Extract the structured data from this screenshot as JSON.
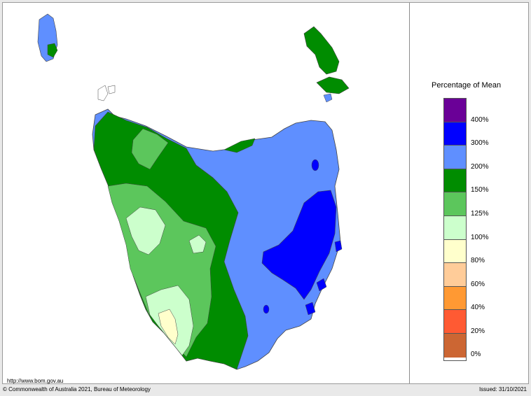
{
  "map": {
    "url": "http://www.bom.gov.au"
  },
  "legend": {
    "title": "Percentage of Mean",
    "labels": [
      "400%",
      "300%",
      "200%",
      "150%",
      "125%",
      "100%",
      "80%",
      "60%",
      "40%",
      "20%",
      "0%"
    ],
    "colors": [
      "#6a0097",
      "#0000ff",
      "#5f8fff",
      "#008c00",
      "#5cc65c",
      "#ccffcc",
      "#ffffcc",
      "#ffcc99",
      "#ff9933",
      "#ff5a33",
      "#cc6633"
    ]
  },
  "footer": {
    "copyright": "© Commonwealth of Australia 2021, Bureau of Meteorology",
    "issued": "Issued: 31/10/2021"
  }
}
